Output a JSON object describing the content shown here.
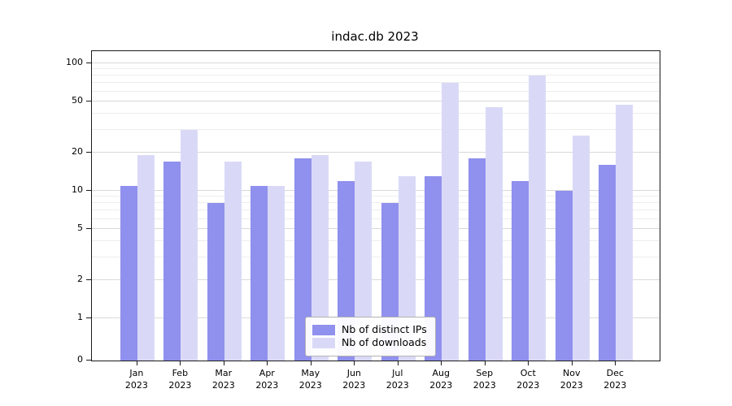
{
  "figure": {
    "title": "indac.db 2023"
  },
  "chart_data": {
    "type": "bar",
    "title": "indac.db 2023",
    "categories": [
      "Jan",
      "Feb",
      "Mar",
      "Apr",
      "May",
      "Jun",
      "Jul",
      "Aug",
      "Sep",
      "Oct",
      "Nov",
      "Dec"
    ],
    "year_label": "2023",
    "series": [
      {
        "name": "Nb of distinct IPs",
        "color": "#9090ee",
        "values": [
          11,
          17,
          8,
          11,
          18,
          12,
          8,
          13,
          18,
          12,
          10,
          16
        ]
      },
      {
        "name": "Nb of downloads",
        "color": "#d9d9f7",
        "values": [
          19,
          30,
          17,
          11,
          19,
          17,
          13,
          70,
          45,
          80,
          27,
          47
        ]
      }
    ],
    "xlabel": "",
    "ylabel": "",
    "yscale": "symlog",
    "ylim": [
      0,
      120
    ],
    "yticks": [
      0,
      1,
      2,
      5,
      10,
      20,
      50,
      100
    ],
    "minor_yticks": [
      3,
      4,
      6,
      7,
      8,
      9,
      30,
      40,
      60,
      70,
      80,
      90
    ],
    "grid": true,
    "legend_position": "lower center"
  }
}
